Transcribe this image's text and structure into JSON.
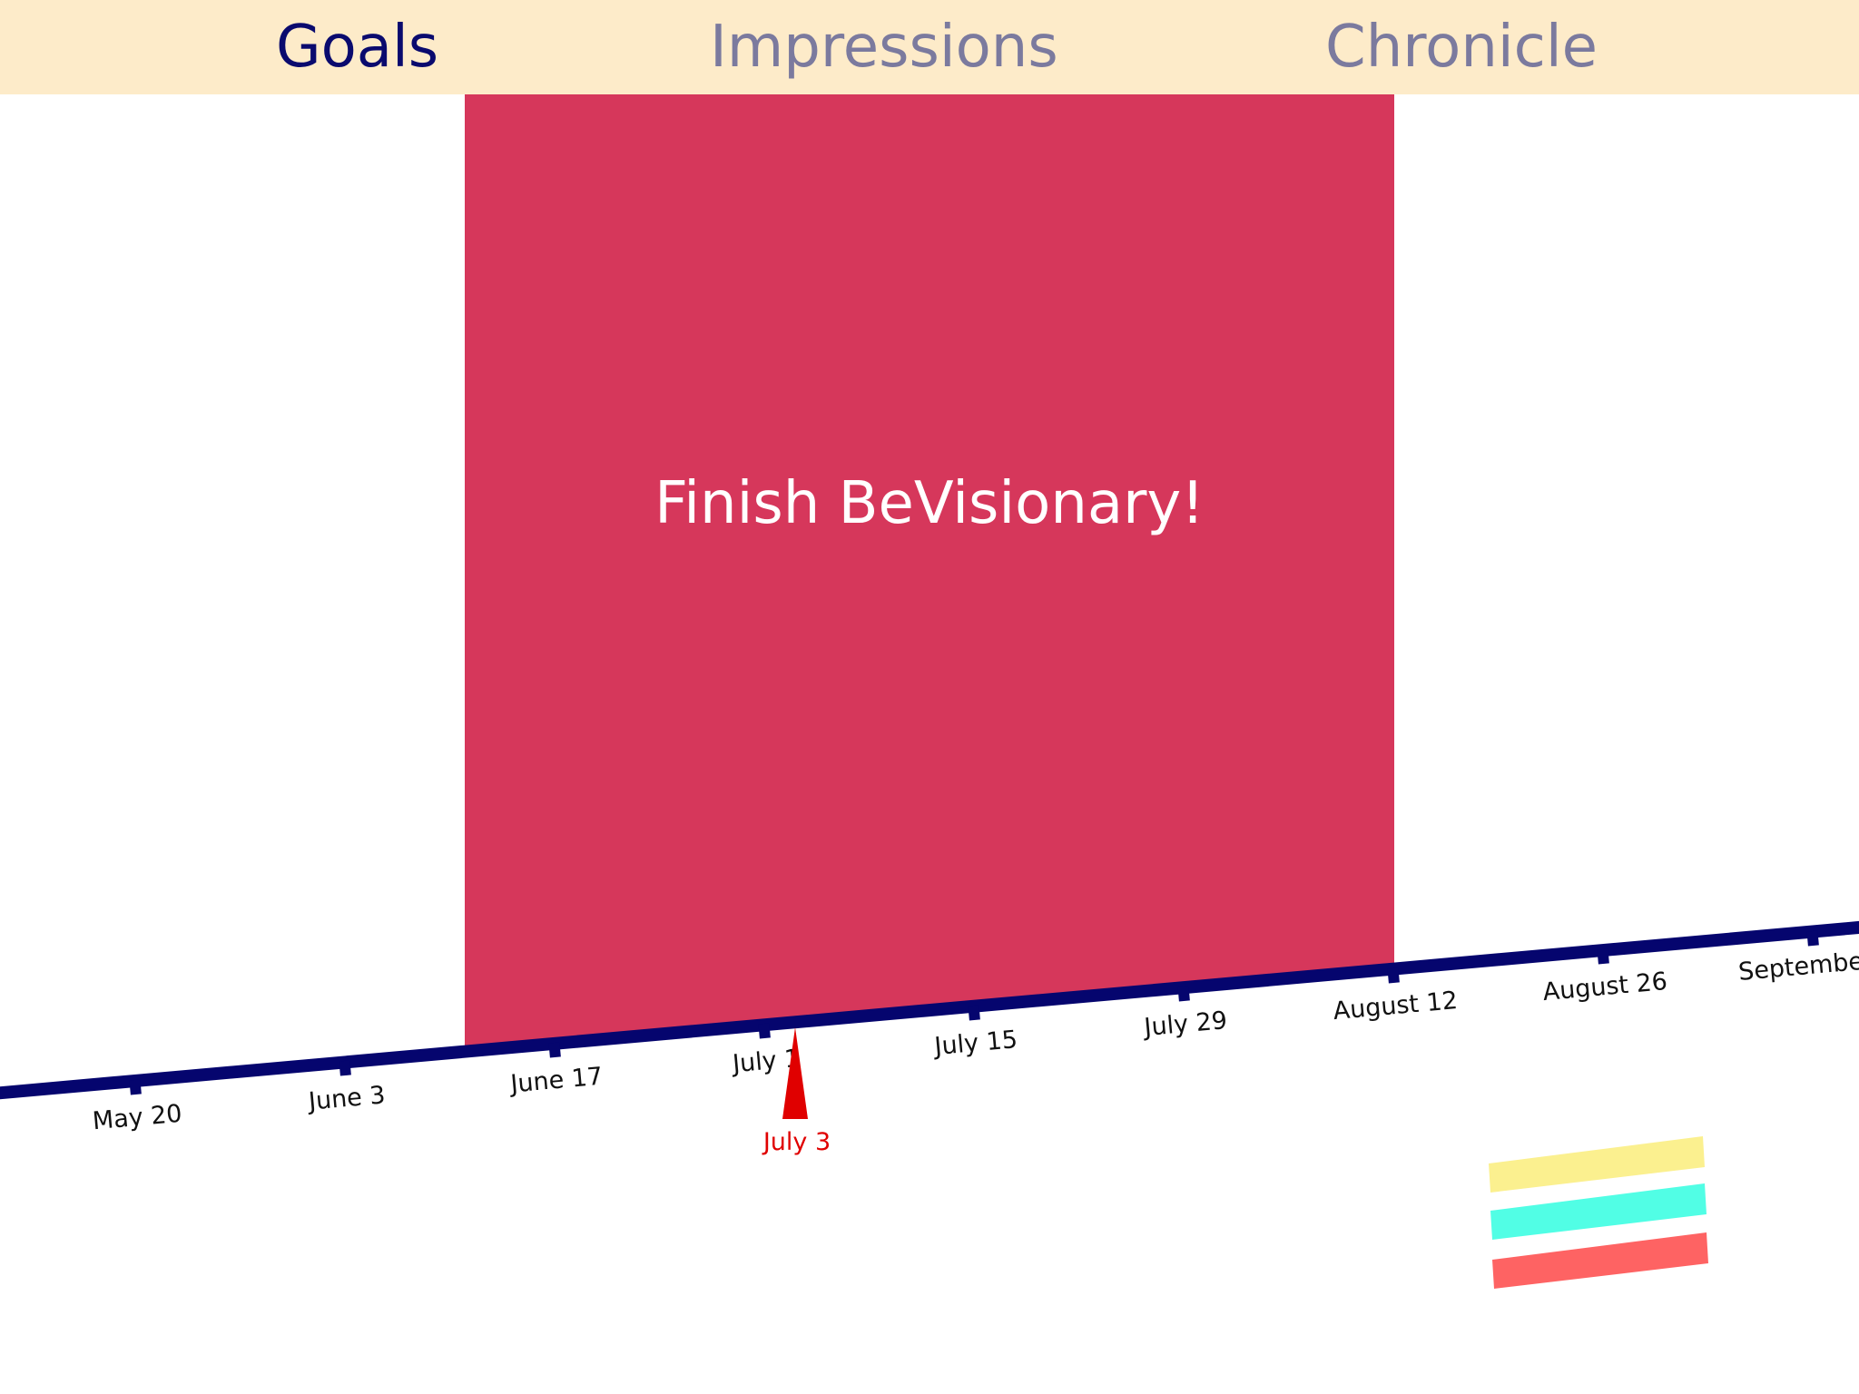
{
  "tabs": [
    {
      "label": "Goals",
      "active": true
    },
    {
      "label": "Impressions",
      "active": false
    },
    {
      "label": "Chronicle",
      "active": false
    }
  ],
  "goal": {
    "title": "Finish BeVisionary!",
    "color": "#d6375b"
  },
  "timeline": {
    "line_color": "#05056e",
    "ticks": [
      "May 20",
      "June 3",
      "June 17",
      "July 1",
      "July 15",
      "July 29",
      "August 12",
      "August 26",
      "September"
    ],
    "current_date": {
      "label": "July 3",
      "color": "#e00000"
    }
  },
  "legend_colors": [
    "#fbf08f",
    "#51fee5",
    "#fe6363"
  ],
  "colors": {
    "header_bg": "#fdebc9",
    "active_tab": "#0a0a6e",
    "inactive_tab": "#7b7a9e"
  }
}
